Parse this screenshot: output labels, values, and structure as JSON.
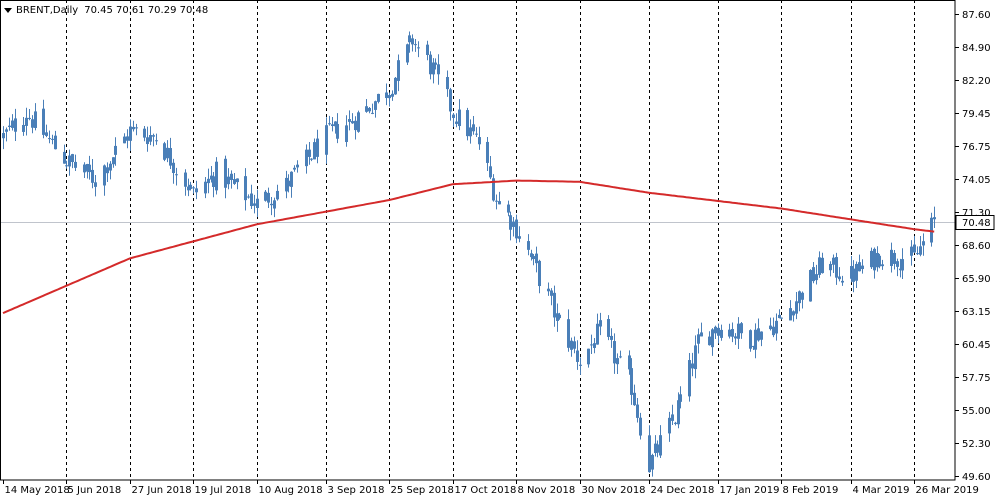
{
  "header": {
    "symbol": "BRENT,Daily",
    "ohlc": "70.45 70.61 70.29 70.48",
    "menu_icon": "triangle-down-icon"
  },
  "colors": {
    "background": "#ffffff",
    "candle": "#4a7fb8",
    "moving_average": "#d42a2a",
    "grid": "#000000",
    "price_line": "#c0c4cc",
    "price_label_bg": "#ffffff",
    "axis_text": "#000000"
  },
  "price_label": "70.48",
  "chart_data": {
    "type": "candlestick",
    "title": "BRENT,Daily",
    "ylim": [
      49.6,
      87.6
    ],
    "y_ticks": [
      "87.60",
      "84.90",
      "82.20",
      "79.45",
      "76.75",
      "74.05",
      "71.30",
      "68.60",
      "65.90",
      "63.15",
      "60.45",
      "57.75",
      "55.00",
      "52.30",
      "49.60"
    ],
    "x_ticks": [
      "14 May 2018",
      "5 Jun 2018",
      "27 Jun 2018",
      "19 Jul 2018",
      "10 Aug 2018",
      "3 Sep 2018",
      "25 Sep 2018",
      "17 Oct 2018",
      "8 Nov 2018",
      "30 Nov 2018",
      "24 Dec 2018",
      "17 Jan 2019",
      "8 Feb 2019",
      "4 Mar 2019",
      "26 Mar 2019"
    ],
    "vertical_separator_ticks": [
      "5 Jun 2018",
      "27 Jun 2018",
      "19 Jul 2018",
      "10 Aug 2018",
      "3 Sep 2018",
      "25 Sep 2018",
      "17 Oct 2018",
      "8 Nov 2018",
      "30 Nov 2018",
      "24 Dec 2018",
      "17 Jan 2019",
      "8 Feb 2019",
      "4 Mar 2019",
      "26 Mar 2019"
    ],
    "last_price": 70.48,
    "close_anchors": [
      [
        "14 May 2018",
        77.5
      ],
      [
        "22 May 2018",
        79.5
      ],
      [
        "5 Jun 2018",
        75.5
      ],
      [
        "15 Jun 2018",
        74.0
      ],
      [
        "27 Jun 2018",
        78.0
      ],
      [
        "6 Jul 2018",
        77.5
      ],
      [
        "19 Jul 2018",
        72.8
      ],
      [
        "27 Jul 2018",
        74.5
      ],
      [
        "10 Aug 2018",
        72.0
      ],
      [
        "20 Aug 2018",
        73.5
      ],
      [
        "3 Sep 2018",
        77.5
      ],
      [
        "13 Sep 2018",
        79.0
      ],
      [
        "25 Sep 2018",
        81.5
      ],
      [
        "3 Oct 2018",
        85.5
      ],
      [
        "10 Oct 2018",
        83.0
      ],
      [
        "17 Oct 2018",
        79.5
      ],
      [
        "26 Oct 2018",
        77.0
      ],
      [
        "1 Nov 2018",
        72.5
      ],
      [
        "8 Nov 2018",
        70.0
      ],
      [
        "15 Nov 2018",
        66.5
      ],
      [
        "22 Nov 2018",
        62.5
      ],
      [
        "30 Nov 2018",
        59.0
      ],
      [
        "7 Dec 2018",
        61.5
      ],
      [
        "18 Dec 2018",
        57.0
      ],
      [
        "24 Dec 2018",
        50.5
      ],
      [
        "2 Jan 2019",
        54.5
      ],
      [
        "10 Jan 2019",
        60.5
      ],
      [
        "17 Jan 2019",
        62.0
      ],
      [
        "28 Jan 2019",
        61.0
      ],
      [
        "8 Feb 2019",
        62.5
      ],
      [
        "22 Feb 2019",
        67.0
      ],
      [
        "4 Mar 2019",
        66.0
      ],
      [
        "14 Mar 2019",
        67.8
      ],
      [
        "26 Mar 2019",
        67.5
      ],
      [
        "2 Apr 2019",
        70.48
      ]
    ],
    "ma_anchors": [
      [
        "14 May 2018",
        63.0
      ],
      [
        "27 Jun 2018",
        67.5
      ],
      [
        "10 Aug 2018",
        70.3
      ],
      [
        "25 Sep 2018",
        72.3
      ],
      [
        "17 Oct 2018",
        73.6
      ],
      [
        "8 Nov 2018",
        73.9
      ],
      [
        "30 Nov 2018",
        73.8
      ],
      [
        "24 Dec 2018",
        72.9
      ],
      [
        "8 Feb 2019",
        71.6
      ],
      [
        "26 Mar 2019",
        69.9
      ],
      [
        "2 Apr 2019",
        69.7
      ]
    ]
  }
}
